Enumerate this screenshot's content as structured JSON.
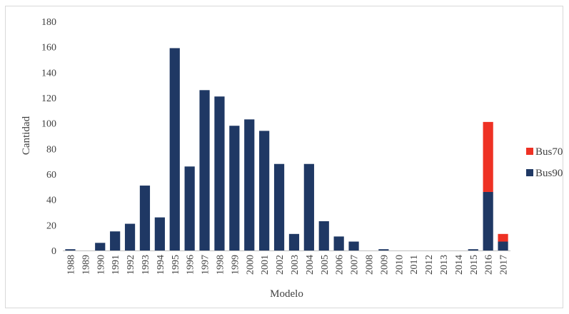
{
  "chart_data": {
    "type": "bar",
    "stacked": true,
    "title": "",
    "xlabel": "Modelo",
    "ylabel": "Cantidad",
    "ylim": [
      0,
      180
    ],
    "yticks": [
      0,
      20,
      40,
      60,
      80,
      100,
      120,
      140,
      160,
      180
    ],
    "grid": false,
    "legend_position": "right",
    "categories": [
      "1988",
      "1989",
      "1990",
      "1991",
      "1992",
      "1993",
      "1994",
      "1995",
      "1996",
      "1997",
      "1998",
      "1999",
      "2000",
      "2001",
      "2002",
      "2003",
      "2004",
      "2005",
      "2006",
      "2007",
      "2008",
      "2009",
      "2010",
      "2011",
      "2012",
      "2013",
      "2014",
      "2015",
      "2016",
      "2017"
    ],
    "series": [
      {
        "name": "Bus90",
        "color": "#1f3864",
        "values": [
          1,
          0,
          6,
          15,
          21,
          51,
          26,
          159,
          66,
          126,
          121,
          98,
          103,
          94,
          68,
          13,
          68,
          23,
          11,
          7,
          0,
          1,
          0,
          0,
          0,
          0,
          0,
          1,
          46,
          7
        ]
      },
      {
        "name": "Bus70",
        "color": "#ee3124",
        "values": [
          0,
          0,
          0,
          0,
          0,
          0,
          0,
          0,
          0,
          0,
          0,
          0,
          0,
          0,
          0,
          0,
          0,
          0,
          0,
          0,
          0,
          0,
          0,
          0,
          0,
          0,
          0,
          0,
          55,
          6
        ]
      }
    ],
    "legend_order": [
      "Bus70",
      "Bus90"
    ]
  }
}
